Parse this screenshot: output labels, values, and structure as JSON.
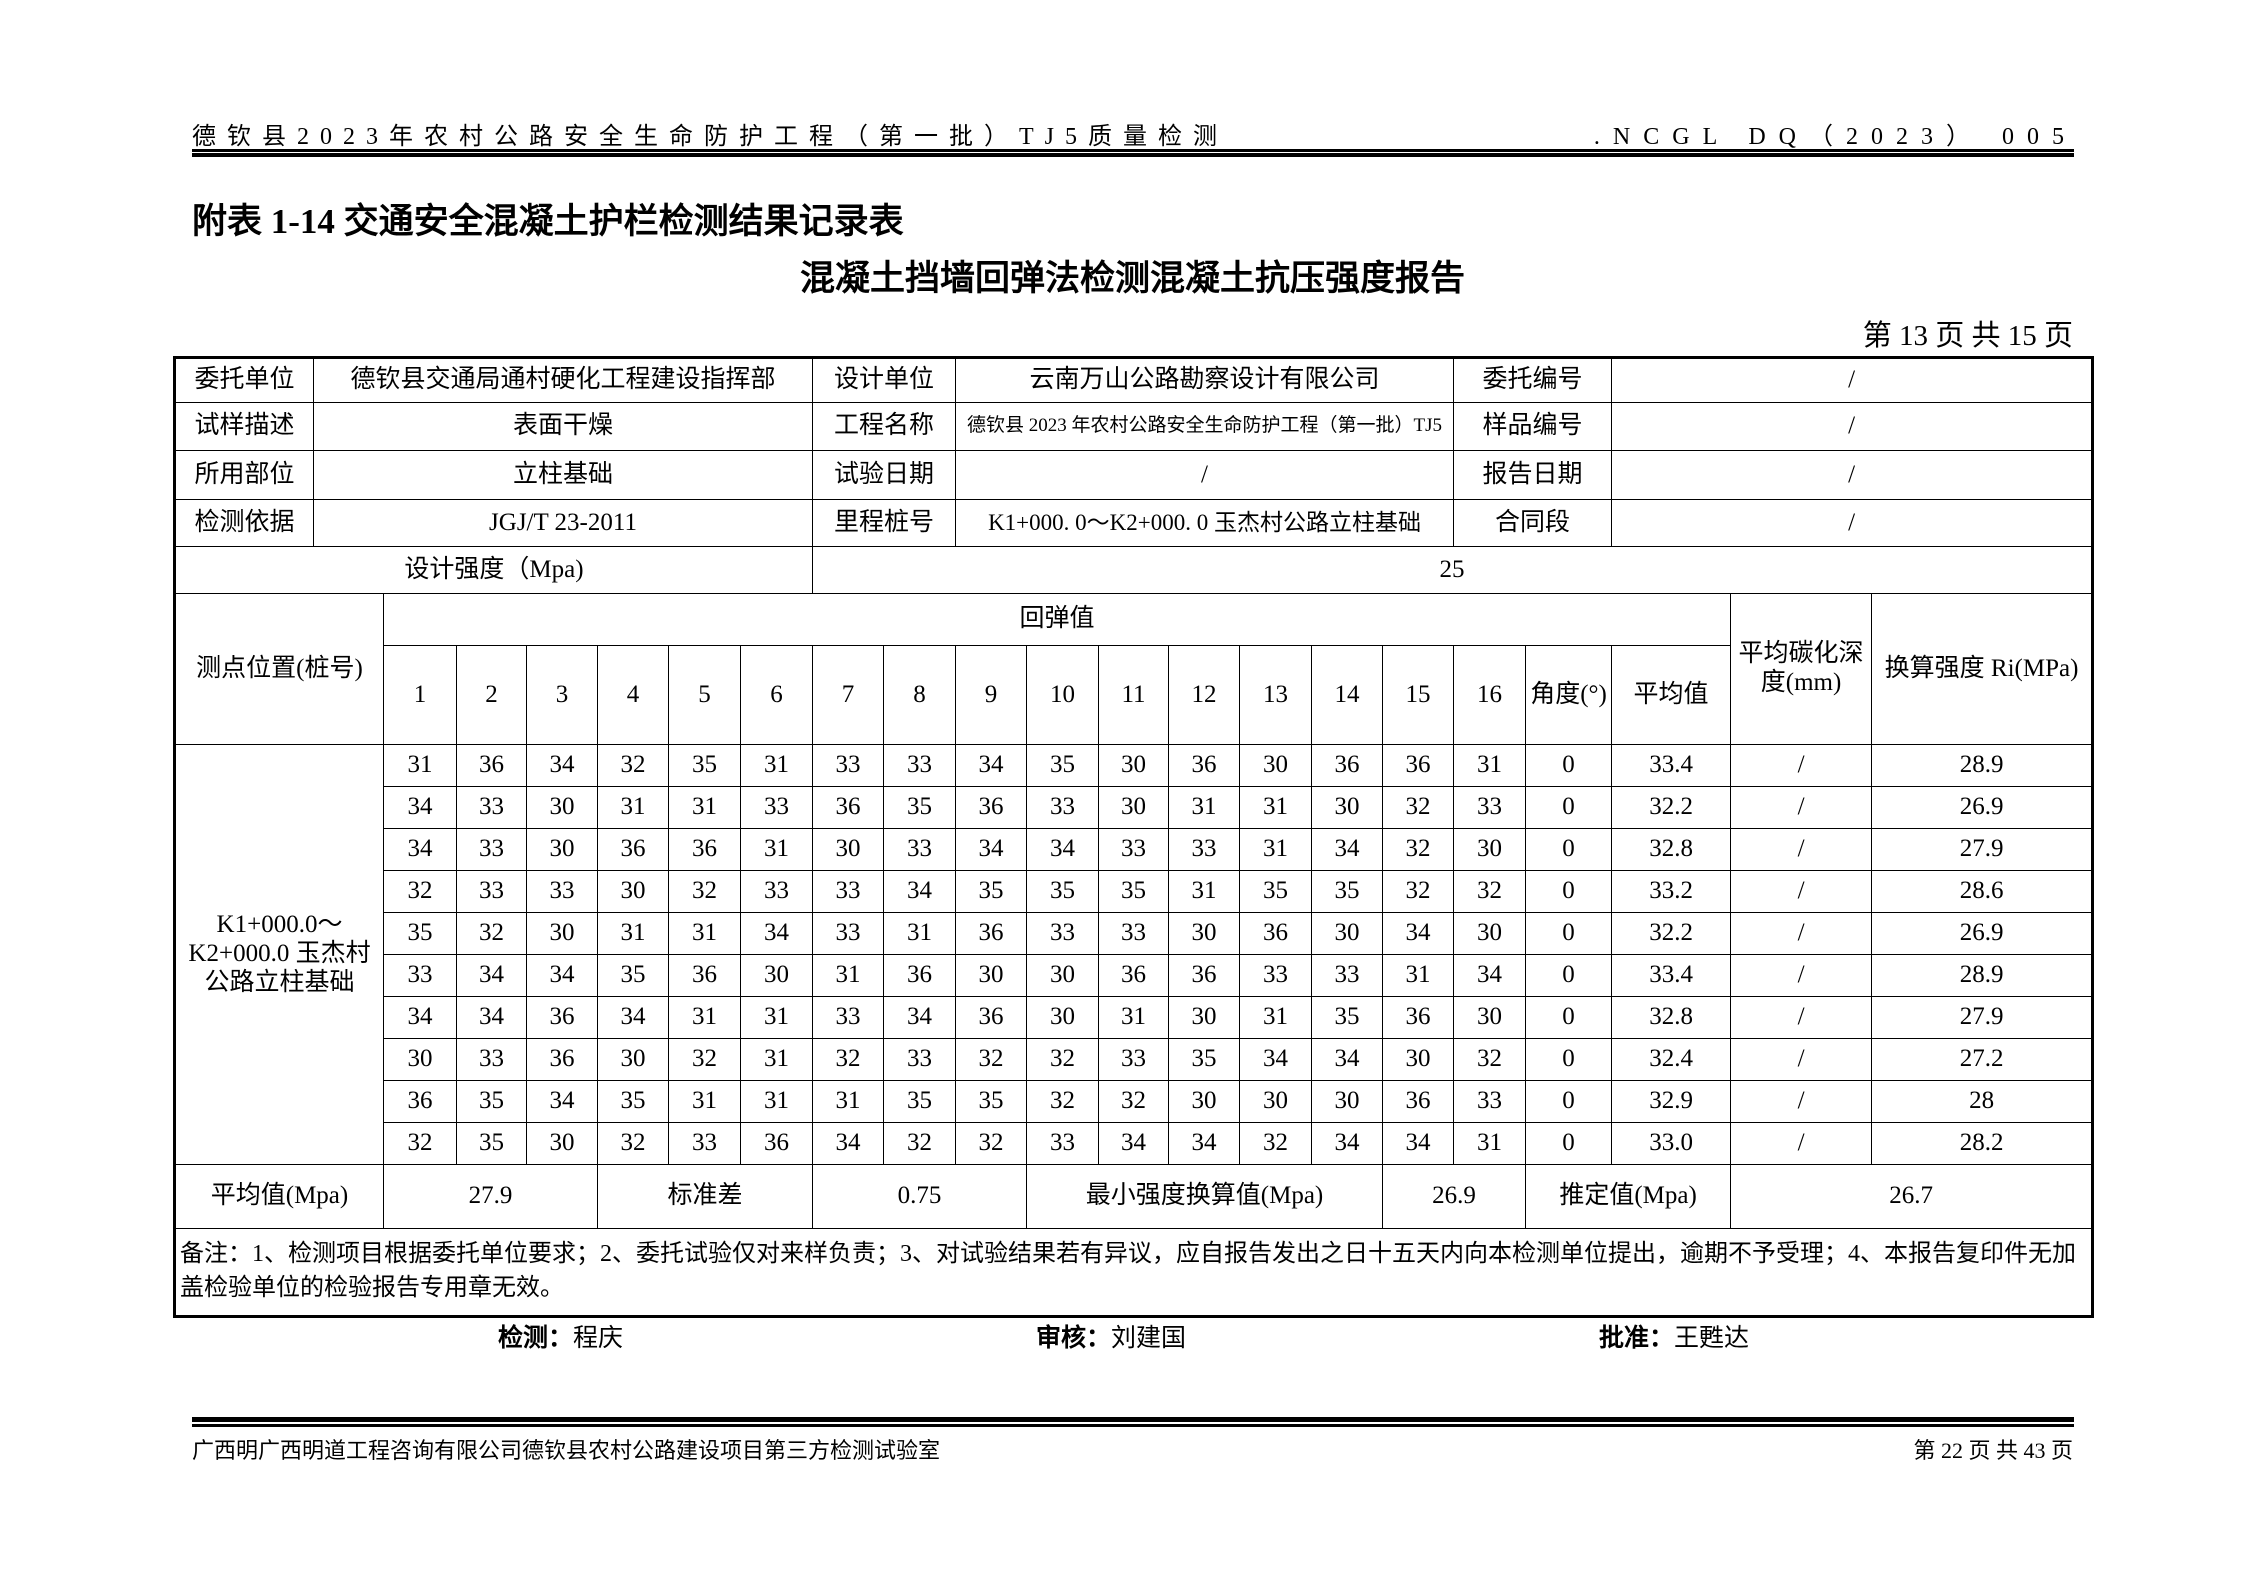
{
  "header": {
    "left": "德钦县2023年农村公路安全生命防护工程（第一批）TJ5质量检测",
    "right": ".NCGL DQ（2023） 005"
  },
  "title1": "附表 1-14 交通安全混凝土护栏检测结果记录表",
  "title2": "混凝土挡墙回弹法检测混凝土抗压强度报告",
  "page_info": "第 13 页  共 15 页",
  "info": {
    "client_label": "委托单位",
    "client": "德钦县交通局通村硬化工程建设指挥部",
    "designer_label": "设计单位",
    "designer": "云南万山公路勘察设计有限公司",
    "commission_no_label": "委托编号",
    "commission_no": "/",
    "sample_desc_label": "试样描述",
    "sample_desc": "表面干燥",
    "project_label": "工程名称",
    "project": "德钦县 2023 年农村公路安全生命防护工程（第一批）TJ5",
    "sample_no_label": "样品编号",
    "sample_no": "/",
    "part_label": "所用部位",
    "part": "立柱基础",
    "test_date_label": "试验日期",
    "test_date": "/",
    "report_date_label": "报告日期",
    "report_date": "/",
    "basis_label": "检测依据",
    "basis": "JGJ/T 23-2011",
    "mileage_label": "里程桩号",
    "mileage": "K1+000. 0～K2+000. 0 玉杰村公路立柱基础",
    "contract_label": "合同段",
    "contract": "/",
    "design_strength_label": "设计强度（Mpa)",
    "design_strength": "25"
  },
  "table": {
    "position_header": "测点位置(桩号)",
    "rebound_header": "回弹值",
    "columns": [
      "1",
      "2",
      "3",
      "4",
      "5",
      "6",
      "7",
      "8",
      "9",
      "10",
      "11",
      "12",
      "13",
      "14",
      "15",
      "16",
      "角度(°)",
      "平均值"
    ],
    "carbonation_header": "平均碳化深度(mm)",
    "strength_header": "换算强度 Ri(MPa)",
    "position": "K1+000.0～K2+000.0 玉杰村公路立柱基础",
    "rows": [
      {
        "r": [
          "31",
          "36",
          "34",
          "32",
          "35",
          "31",
          "33",
          "33",
          "34",
          "35",
          "30",
          "36",
          "30",
          "36",
          "36",
          "31"
        ],
        "angle": "0",
        "avg": "33.4",
        "carb": "/",
        "strength": "28.9"
      },
      {
        "r": [
          "34",
          "33",
          "30",
          "31",
          "31",
          "33",
          "36",
          "35",
          "36",
          "33",
          "30",
          "31",
          "31",
          "30",
          "32",
          "33"
        ],
        "angle": "0",
        "avg": "32.2",
        "carb": "/",
        "strength": "26.9"
      },
      {
        "r": [
          "34",
          "33",
          "30",
          "36",
          "36",
          "31",
          "30",
          "33",
          "34",
          "34",
          "33",
          "33",
          "31",
          "34",
          "32",
          "30"
        ],
        "angle": "0",
        "avg": "32.8",
        "carb": "/",
        "strength": "27.9"
      },
      {
        "r": [
          "32",
          "33",
          "33",
          "30",
          "32",
          "33",
          "33",
          "34",
          "35",
          "35",
          "35",
          "31",
          "35",
          "35",
          "32",
          "32"
        ],
        "angle": "0",
        "avg": "33.2",
        "carb": "/",
        "strength": "28.6"
      },
      {
        "r": [
          "35",
          "32",
          "30",
          "31",
          "31",
          "34",
          "33",
          "31",
          "36",
          "33",
          "33",
          "30",
          "36",
          "30",
          "34",
          "30"
        ],
        "angle": "0",
        "avg": "32.2",
        "carb": "/",
        "strength": "26.9"
      },
      {
        "r": [
          "33",
          "34",
          "34",
          "35",
          "36",
          "30",
          "31",
          "36",
          "30",
          "30",
          "36",
          "36",
          "33",
          "33",
          "31",
          "34"
        ],
        "angle": "0",
        "avg": "33.4",
        "carb": "/",
        "strength": "28.9"
      },
      {
        "r": [
          "34",
          "34",
          "36",
          "34",
          "31",
          "31",
          "33",
          "34",
          "36",
          "30",
          "31",
          "30",
          "31",
          "35",
          "36",
          "30"
        ],
        "angle": "0",
        "avg": "32.8",
        "carb": "/",
        "strength": "27.9"
      },
      {
        "r": [
          "30",
          "33",
          "36",
          "30",
          "32",
          "31",
          "32",
          "33",
          "32",
          "32",
          "33",
          "35",
          "34",
          "34",
          "30",
          "32"
        ],
        "angle": "0",
        "avg": "32.4",
        "carb": "/",
        "strength": "27.2"
      },
      {
        "r": [
          "36",
          "35",
          "34",
          "35",
          "31",
          "31",
          "31",
          "35",
          "35",
          "32",
          "32",
          "30",
          "30",
          "30",
          "36",
          "33"
        ],
        "angle": "0",
        "avg": "32.9",
        "carb": "/",
        "strength": "28"
      },
      {
        "r": [
          "32",
          "35",
          "30",
          "32",
          "33",
          "36",
          "34",
          "32",
          "32",
          "33",
          "34",
          "34",
          "32",
          "34",
          "34",
          "31"
        ],
        "angle": "0",
        "avg": "33.0",
        "carb": "/",
        "strength": "28.2"
      }
    ]
  },
  "summary": {
    "mean_label": "平均值(Mpa)",
    "mean": "27.9",
    "std_label": "标准差",
    "std": "0.75",
    "min_label": "最小强度换算值(Mpa)",
    "min": "26.9",
    "estimate_label": "推定值(Mpa)",
    "estimate": "26.7"
  },
  "notes": "备注：1、检测项目根据委托单位要求；2、委托试验仅对来样负责；3、对试验结果若有异议，应自报告发出之日十五天内向本检测单位提出，逾期不予受理；4、本报告复印件无加盖检验单位的检验报告专用章无效。",
  "signatures": {
    "tester_label": "检测：",
    "tester": "程庆",
    "reviewer_label": "审核：",
    "reviewer": "刘建国",
    "approver_label": "批准：",
    "approver": "王甦达"
  },
  "footer": {
    "left": "广西明广西明道工程咨询有限公司德钦县农村公路建设项目第三方检测试验室",
    "right": "第 22 页 共 43 页"
  }
}
